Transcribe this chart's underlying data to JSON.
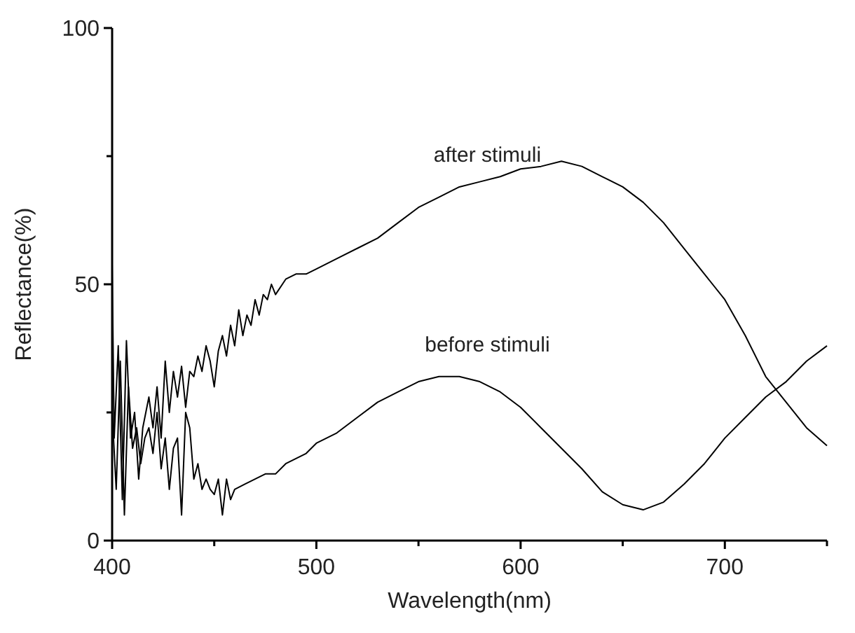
{
  "chart_data": {
    "type": "line",
    "xlabel": "Wavelength(nm)",
    "ylabel": "Reflectance(%)",
    "xlim": [
      400,
      750
    ],
    "xticks": [
      400,
      {
        "value": 450,
        "label": null
      },
      500,
      {
        "value": 550,
        "label": null
      },
      600,
      {
        "value": 650,
        "label": null
      },
      700,
      {
        "value": 750,
        "label": null
      }
    ],
    "ylim": [
      0,
      100
    ],
    "yticks": [
      0,
      {
        "value": 25,
        "label": null
      },
      50,
      {
        "value": 75,
        "label": null
      },
      100
    ],
    "grid": false,
    "marker": "none",
    "line_style": "solid",
    "series": [
      {
        "name": "after stimuli",
        "color": "#000000",
        "x": [
          400,
          401,
          403,
          405,
          407,
          409,
          411,
          413,
          415,
          418,
          420,
          422,
          424,
          426,
          428,
          430,
          432,
          434,
          436,
          438,
          440,
          442,
          444,
          446,
          448,
          450,
          452,
          454,
          456,
          458,
          460,
          462,
          464,
          466,
          468,
          470,
          472,
          474,
          476,
          478,
          480,
          485,
          490,
          495,
          500,
          510,
          520,
          530,
          540,
          550,
          560,
          570,
          580,
          590,
          600,
          610,
          620,
          630,
          640,
          650,
          660,
          670,
          680,
          690,
          700,
          710,
          720,
          730,
          740,
          750
        ],
        "values": [
          54,
          20,
          38,
          8,
          39,
          20,
          25,
          12,
          22,
          28,
          22,
          30,
          20,
          35,
          25,
          33,
          28,
          34,
          26,
          33,
          32,
          36,
          33,
          38,
          35,
          30,
          37,
          40,
          36,
          42,
          38,
          45,
          40,
          44,
          42,
          47,
          44,
          48,
          47,
          50,
          48,
          51,
          52,
          52,
          53,
          55,
          57,
          59,
          62,
          65,
          67,
          69,
          70,
          71,
          72.5,
          73,
          74,
          73,
          71,
          69,
          66,
          62,
          57,
          52,
          47,
          40,
          32,
          27,
          22,
          18.5
        ]
      },
      {
        "name": "before stimuli",
        "color": "#000000",
        "x": [
          400,
          402,
          404,
          406,
          408,
          410,
          412,
          414,
          416,
          418,
          420,
          422,
          424,
          426,
          428,
          430,
          432,
          434,
          436,
          438,
          440,
          442,
          444,
          446,
          448,
          450,
          452,
          454,
          456,
          458,
          460,
          465,
          470,
          475,
          480,
          485,
          490,
          495,
          500,
          510,
          520,
          530,
          540,
          550,
          560,
          570,
          580,
          590,
          600,
          610,
          620,
          630,
          640,
          650,
          660,
          670,
          680,
          690,
          700,
          710,
          720,
          730,
          740,
          750
        ],
        "values": [
          25,
          10,
          35,
          5,
          30,
          18,
          22,
          15,
          20,
          22,
          17,
          25,
          14,
          20,
          10,
          18,
          20,
          5,
          25,
          22,
          12,
          15,
          10,
          12,
          10,
          9,
          12,
          5,
          12,
          8,
          10,
          11,
          12,
          13,
          13,
          15,
          16,
          17,
          19,
          21,
          24,
          27,
          29,
          31,
          32,
          32,
          31,
          29,
          26,
          22,
          18,
          14,
          9.5,
          7,
          6,
          7.5,
          11,
          15,
          20,
          24,
          28,
          31,
          35,
          38
        ]
      }
    ]
  }
}
